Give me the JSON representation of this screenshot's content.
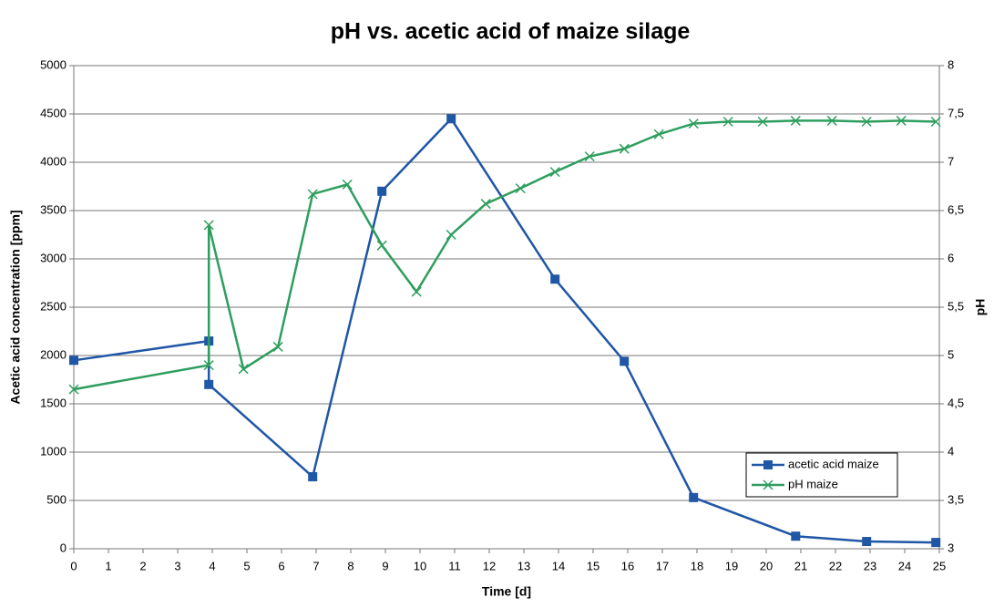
{
  "chart_data": {
    "type": "line",
    "title": "pH vs. acetic acid of maize silage",
    "xlabel": "Time [d]",
    "ylabel": "Acetic acid concentration [ppm]",
    "y2label": "pH",
    "xlim": [
      0,
      25
    ],
    "xticks": [
      0,
      1,
      2,
      3,
      4,
      5,
      6,
      7,
      8,
      9,
      10,
      11,
      12,
      13,
      14,
      15,
      16,
      17,
      18,
      19,
      20,
      21,
      22,
      23,
      24,
      25
    ],
    "ylim": [
      0,
      5000
    ],
    "yticks": [
      0,
      500,
      1000,
      1500,
      2000,
      2500,
      3000,
      3500,
      4000,
      4500,
      5000
    ],
    "y2lim": [
      3,
      8
    ],
    "y2ticks": [
      3,
      {
        "value": 3.5,
        "label": "3,5"
      },
      4,
      {
        "value": 4.5,
        "label": "4,5"
      },
      5,
      {
        "value": 5.5,
        "label": "5,5"
      },
      6,
      {
        "value": 6.5,
        "label": "6,5"
      },
      7,
      {
        "value": 7.5,
        "label": "7,5"
      },
      8
    ],
    "grid": true,
    "legend": "lower right",
    "series": [
      {
        "name": "acetic acid maize",
        "color": "#1f56a5",
        "marker": "square",
        "axis": "y",
        "x": [
          0,
          3.9,
          3.9,
          6.9,
          8.9,
          10.9,
          13.9,
          15.9,
          17.9,
          20.85,
          22.9,
          24.9
        ],
        "values": [
          1950,
          2150,
          1700,
          745,
          3700,
          4450,
          2790,
          1940,
          530,
          130,
          75,
          65
        ]
      },
      {
        "name": "pH maize",
        "color": "#2e9e5e",
        "marker": "x",
        "axis": "y2",
        "x": [
          0,
          3.9,
          3.9,
          4.9,
          5.9,
          6.9,
          7.9,
          8.9,
          9.9,
          10.9,
          11.9,
          12.9,
          13.9,
          14.9,
          15.9,
          16.9,
          17.9,
          18.9,
          19.9,
          20.85,
          21.9,
          22.9,
          23.9,
          24.9
        ],
        "values": [
          4.65,
          4.9,
          6.35,
          4.86,
          5.09,
          6.67,
          6.77,
          6.14,
          5.66,
          6.25,
          6.57,
          6.73,
          6.9,
          7.06,
          7.14,
          7.29,
          7.4,
          7.42,
          7.42,
          7.43,
          7.43,
          7.42,
          7.43,
          7.42
        ]
      }
    ]
  }
}
